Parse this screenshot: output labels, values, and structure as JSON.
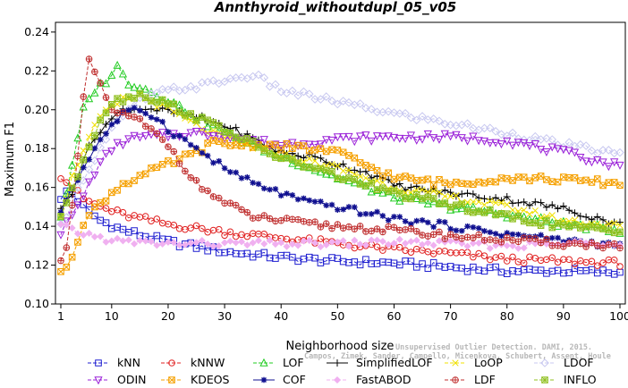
{
  "chart_data": {
    "type": "line",
    "title": "Annthyroid_withoutdupl_05_v05",
    "xlabel": "Neighborhood size",
    "ylabel": "Maximum F1",
    "xlim": [
      1,
      100
    ],
    "ylim": [
      0.1,
      0.245
    ],
    "xticks": [
      1,
      10,
      20,
      30,
      40,
      50,
      60,
      70,
      80,
      90,
      100
    ],
    "yticks": [
      0.1,
      0.12,
      0.14,
      0.16,
      0.18,
      0.2,
      0.22,
      0.24
    ],
    "legend_position": "bottom",
    "watermark": [
      "Unsupervised Outlier Detection. DAMI, 2015.",
      "Campos, Zimek, Sander, Campello, Micenkova, Schubert, Assent, Houle"
    ],
    "series": [
      {
        "name": "kNN",
        "color": "#1f1fd0",
        "marker": "square",
        "dash": "4,2",
        "keys": [
          [
            1,
            0.153
          ],
          [
            2,
            0.158
          ],
          [
            3,
            0.157
          ],
          [
            5,
            0.15
          ],
          [
            8,
            0.143
          ],
          [
            12,
            0.138
          ],
          [
            20,
            0.132
          ],
          [
            30,
            0.127
          ],
          [
            40,
            0.124
          ],
          [
            50,
            0.122
          ],
          [
            60,
            0.121
          ],
          [
            70,
            0.119
          ],
          [
            80,
            0.117
          ],
          [
            90,
            0.117
          ],
          [
            100,
            0.116
          ]
        ]
      },
      {
        "name": "kNNW",
        "color": "#e02020",
        "marker": "circle",
        "dash": "4,2",
        "keys": [
          [
            1,
            0.166
          ],
          [
            2,
            0.163
          ],
          [
            3,
            0.16
          ],
          [
            5,
            0.154
          ],
          [
            8,
            0.15
          ],
          [
            12,
            0.146
          ],
          [
            20,
            0.141
          ],
          [
            30,
            0.137
          ],
          [
            40,
            0.134
          ],
          [
            50,
            0.131
          ],
          [
            60,
            0.128
          ],
          [
            70,
            0.126
          ],
          [
            80,
            0.123
          ],
          [
            90,
            0.122
          ],
          [
            100,
            0.121
          ]
        ]
      },
      {
        "name": "LOF",
        "color": "#22cc22",
        "marker": "triangle-up",
        "dash": "4,2",
        "keys": [
          [
            1,
            0.145
          ],
          [
            3,
            0.17
          ],
          [
            5,
            0.2
          ],
          [
            7,
            0.21
          ],
          [
            9,
            0.215
          ],
          [
            11,
            0.222
          ],
          [
            13,
            0.214
          ],
          [
            15,
            0.212
          ],
          [
            20,
            0.205
          ],
          [
            25,
            0.196
          ],
          [
            30,
            0.188
          ],
          [
            40,
            0.176
          ],
          [
            50,
            0.165
          ],
          [
            60,
            0.155
          ],
          [
            70,
            0.15
          ],
          [
            80,
            0.146
          ],
          [
            90,
            0.141
          ],
          [
            100,
            0.138
          ]
        ]
      },
      {
        "name": "SimplifiedLOF",
        "color": "#000000",
        "marker": "plus",
        "dash": "",
        "keys": [
          [
            1,
            0.148
          ],
          [
            3,
            0.158
          ],
          [
            5,
            0.175
          ],
          [
            8,
            0.19
          ],
          [
            12,
            0.2
          ],
          [
            16,
            0.201
          ],
          [
            20,
            0.199
          ],
          [
            25,
            0.196
          ],
          [
            30,
            0.192
          ],
          [
            35,
            0.185
          ],
          [
            40,
            0.178
          ],
          [
            45,
            0.176
          ],
          [
            50,
            0.172
          ],
          [
            55,
            0.168
          ],
          [
            60,
            0.161
          ],
          [
            70,
            0.157
          ],
          [
            80,
            0.154
          ],
          [
            90,
            0.149
          ],
          [
            100,
            0.141
          ]
        ]
      },
      {
        "name": "LoOP",
        "color": "#f0e000",
        "marker": "cross",
        "dash": "4,2",
        "keys": [
          [
            1,
            0.146
          ],
          [
            3,
            0.165
          ],
          [
            5,
            0.18
          ],
          [
            8,
            0.196
          ],
          [
            12,
            0.205
          ],
          [
            15,
            0.207
          ],
          [
            20,
            0.2
          ],
          [
            25,
            0.192
          ],
          [
            30,
            0.185
          ],
          [
            40,
            0.177
          ],
          [
            50,
            0.17
          ],
          [
            60,
            0.16
          ],
          [
            70,
            0.155
          ],
          [
            80,
            0.15
          ],
          [
            90,
            0.143
          ],
          [
            100,
            0.14
          ]
        ]
      },
      {
        "name": "LDOF",
        "color": "#c8c8f0",
        "marker": "diamond",
        "dash": "4,2",
        "keys": [
          [
            1,
            0.14
          ],
          [
            5,
            0.165
          ],
          [
            10,
            0.19
          ],
          [
            15,
            0.205
          ],
          [
            20,
            0.21
          ],
          [
            25,
            0.212
          ],
          [
            30,
            0.215
          ],
          [
            35,
            0.218
          ],
          [
            40,
            0.21
          ],
          [
            50,
            0.204
          ],
          [
            60,
            0.198
          ],
          [
            70,
            0.193
          ],
          [
            80,
            0.188
          ],
          [
            90,
            0.182
          ],
          [
            100,
            0.177
          ]
        ]
      },
      {
        "name": "ODIN",
        "color": "#9a20d8",
        "marker": "triangle-down",
        "dash": "4,2",
        "keys": [
          [
            1,
            0.137
          ],
          [
            4,
            0.15
          ],
          [
            7,
            0.168
          ],
          [
            10,
            0.18
          ],
          [
            13,
            0.185
          ],
          [
            16,
            0.186
          ],
          [
            20,
            0.187
          ],
          [
            25,
            0.188
          ],
          [
            30,
            0.187
          ],
          [
            35,
            0.184
          ],
          [
            40,
            0.182
          ],
          [
            50,
            0.185
          ],
          [
            60,
            0.186
          ],
          [
            70,
            0.186
          ],
          [
            80,
            0.184
          ],
          [
            90,
            0.178
          ],
          [
            100,
            0.171
          ]
        ]
      },
      {
        "name": "KDEOS",
        "color": "#f5a000",
        "marker": "square-x",
        "dash": "4,2",
        "keys": [
          [
            1,
            0.115
          ],
          [
            3,
            0.125
          ],
          [
            5,
            0.142
          ],
          [
            8,
            0.152
          ],
          [
            12,
            0.162
          ],
          [
            16,
            0.167
          ],
          [
            20,
            0.172
          ],
          [
            25,
            0.178
          ],
          [
            28,
            0.183
          ],
          [
            30,
            0.182
          ],
          [
            35,
            0.182
          ],
          [
            40,
            0.181
          ],
          [
            45,
            0.18
          ],
          [
            50,
            0.178
          ],
          [
            60,
            0.165
          ],
          [
            70,
            0.162
          ],
          [
            80,
            0.165
          ],
          [
            90,
            0.164
          ],
          [
            100,
            0.162
          ]
        ]
      },
      {
        "name": "COF",
        "color": "#101090",
        "marker": "asterisk",
        "dash": "",
        "keys": [
          [
            1,
            0.148
          ],
          [
            4,
            0.165
          ],
          [
            8,
            0.185
          ],
          [
            12,
            0.198
          ],
          [
            15,
            0.2
          ],
          [
            18,
            0.196
          ],
          [
            20,
            0.19
          ],
          [
            25,
            0.18
          ],
          [
            30,
            0.17
          ],
          [
            35,
            0.162
          ],
          [
            40,
            0.157
          ],
          [
            45,
            0.152
          ],
          [
            50,
            0.15
          ],
          [
            60,
            0.144
          ],
          [
            70,
            0.14
          ],
          [
            80,
            0.136
          ],
          [
            90,
            0.133
          ],
          [
            100,
            0.13
          ]
        ]
      },
      {
        "name": "FastABOD",
        "color": "#f0b0f0",
        "marker": "diamond-filled",
        "dash": "4,2",
        "keys": [
          [
            1,
            0.14
          ],
          [
            4,
            0.137
          ],
          [
            8,
            0.134
          ],
          [
            12,
            0.132
          ],
          [
            20,
            0.131
          ],
          [
            30,
            0.131
          ],
          [
            40,
            0.131
          ],
          [
            50,
            0.131
          ],
          [
            60,
            0.132
          ],
          [
            70,
            0.131
          ],
          [
            80,
            0.13
          ],
          [
            90,
            0.131
          ],
          [
            100,
            0.132
          ]
        ]
      },
      {
        "name": "LDF",
        "color": "#c03030",
        "marker": "circle-plus",
        "dash": "4,2",
        "keys": [
          [
            1,
            0.124
          ],
          [
            2,
            0.13
          ],
          [
            3,
            0.15
          ],
          [
            4,
            0.175
          ],
          [
            5,
            0.205
          ],
          [
            6,
            0.226
          ],
          [
            8,
            0.212
          ],
          [
            10,
            0.2
          ],
          [
            15,
            0.194
          ],
          [
            20,
            0.182
          ],
          [
            25,
            0.162
          ],
          [
            30,
            0.152
          ],
          [
            35,
            0.145
          ],
          [
            40,
            0.143
          ],
          [
            45,
            0.141
          ],
          [
            50,
            0.14
          ],
          [
            60,
            0.138
          ],
          [
            70,
            0.135
          ],
          [
            80,
            0.133
          ],
          [
            90,
            0.131
          ],
          [
            100,
            0.13
          ]
        ]
      },
      {
        "name": "INFLO",
        "color": "#90c020",
        "marker": "square-star",
        "dash": "4,2",
        "keys": [
          [
            1,
            0.146
          ],
          [
            3,
            0.158
          ],
          [
            5,
            0.175
          ],
          [
            8,
            0.195
          ],
          [
            10,
            0.204
          ],
          [
            15,
            0.208
          ],
          [
            20,
            0.203
          ],
          [
            25,
            0.196
          ],
          [
            30,
            0.19
          ],
          [
            35,
            0.182
          ],
          [
            40,
            0.175
          ],
          [
            50,
            0.166
          ],
          [
            60,
            0.157
          ],
          [
            70,
            0.151
          ],
          [
            80,
            0.145
          ],
          [
            90,
            0.14
          ],
          [
            100,
            0.137
          ]
        ]
      }
    ]
  }
}
